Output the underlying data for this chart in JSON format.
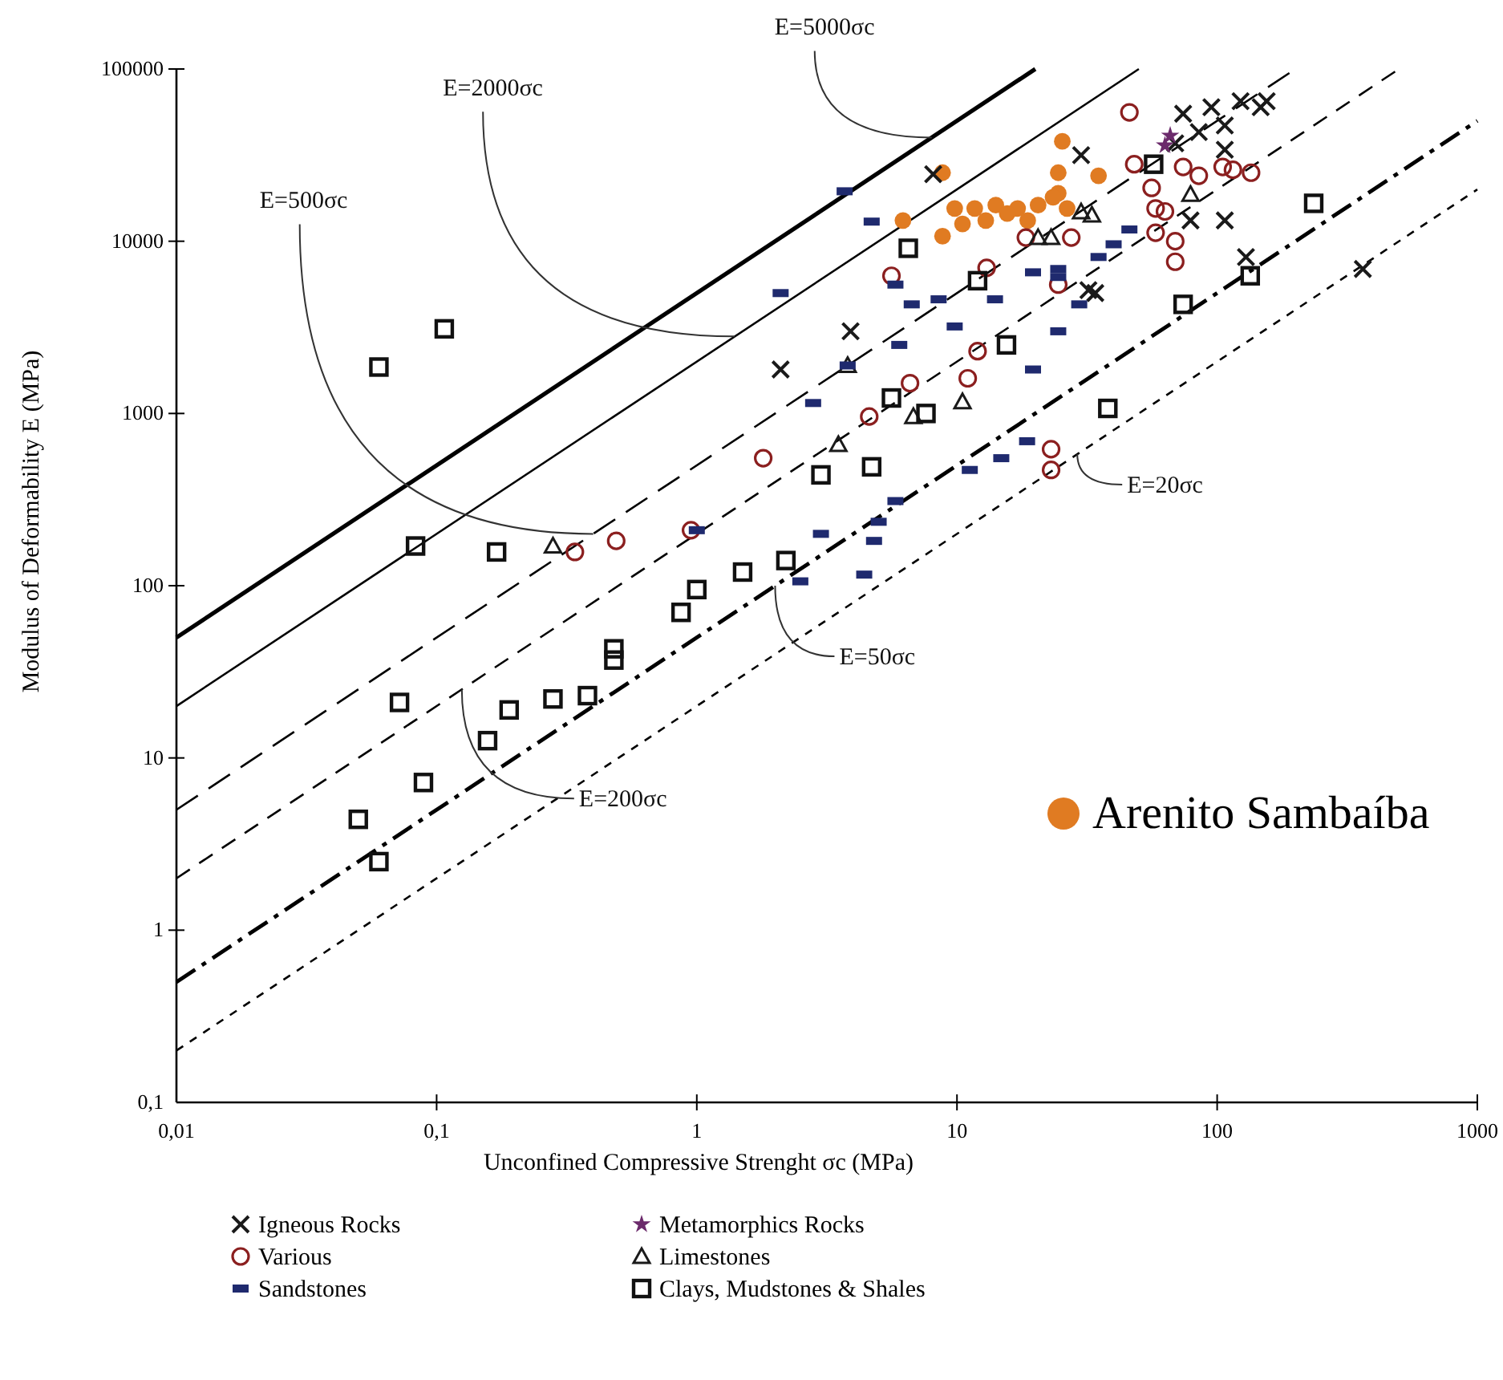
{
  "chart_data": {
    "type": "scatter",
    "xlabel": "Unconfined Compressive Strenght σc (MPa)",
    "ylabel": "Modulus of Deformability  E (MPa)",
    "log": "xy",
    "grid": false,
    "legend": "bottom",
    "xlim": [
      0.01,
      1000
    ],
    "ylim": [
      0.1,
      100000
    ],
    "xticks": [
      {
        "value": 0.01,
        "label": "0,01"
      },
      {
        "value": 0.1,
        "label": "0,1"
      },
      1,
      10,
      100,
      1000
    ],
    "yticks": [
      {
        "value": 0.1,
        "label": "0,1"
      },
      1,
      10,
      100,
      1000,
      10000,
      100000
    ],
    "annotations": [
      {
        "text": "E=5000σc",
        "x": 8,
        "y": 40000
      },
      {
        "text": "E=2000σc",
        "x": 1.4,
        "y": 2800
      },
      {
        "text": "E=500σc",
        "x": 0.4,
        "y": 200
      },
      {
        "text": "E=200σc",
        "x": 0.125,
        "y": 25
      },
      {
        "text": "E=50σc",
        "x": 2,
        "y": 100
      },
      {
        "text": "E=20σc",
        "x": 29,
        "y": 580
      }
    ],
    "series": [
      {
        "name": "Igneous Rocks",
        "type": "scatter",
        "marker": "cross",
        "color": "#1a1a1a",
        "x": [
          2.1,
          3.9,
          30,
          8.1,
          34,
          74,
          95,
          123,
          155,
          107,
          85,
          147,
          107,
          107,
          79,
          129,
          363,
          32,
          69
        ],
        "values": [
          1800,
          3000,
          31600,
          24500,
          5000,
          55000,
          60000,
          65000,
          65000,
          47000,
          43000,
          60000,
          34000,
          13200,
          13200,
          8100,
          6900,
          5200,
          37000
        ]
      },
      {
        "name": "Metamorphics Rocks",
        "type": "scatter",
        "marker": "star",
        "color": "#6b2a6b",
        "x": [
          63,
          66
        ],
        "values": [
          36000,
          41000
        ]
      },
      {
        "name": "Various",
        "type": "scatter",
        "marker": "circle",
        "color": "#8b1f1f",
        "x": [
          0.34,
          0.49,
          0.95,
          1.8,
          4.6,
          6.6,
          11,
          12,
          13,
          5.6,
          18.4,
          27.5,
          23,
          23,
          24.5,
          46,
          48,
          56,
          58,
          63,
          58,
          69,
          69,
          85,
          115,
          135,
          105,
          74
        ],
        "values": [
          157,
          182,
          210,
          550,
          960,
          1500,
          1600,
          2300,
          7000,
          6300,
          10500,
          10500,
          620,
          470,
          5600,
          56000,
          28000,
          20400,
          15500,
          14900,
          11200,
          10000,
          7600,
          24000,
          26000,
          25000,
          27000,
          27000
        ]
      },
      {
        "name": "Limestones",
        "type": "scatter",
        "marker": "triangle",
        "color": "#1a1a1a",
        "x": [
          0.28,
          3.5,
          3.8,
          6.8,
          10.5,
          20.5,
          23,
          30,
          33,
          79
        ],
        "values": [
          170,
          660,
          1900,
          960,
          1170,
          10500,
          10500,
          14800,
          14200,
          18700
        ]
      },
      {
        "name": "Sandstones",
        "type": "scatter",
        "color": "#1f2a6e",
        "x": [
          3.7,
          4.7,
          2.1,
          2.8,
          3.8,
          6,
          6.7,
          8.5,
          5.8,
          9.8,
          14,
          19.6,
          24.5,
          24.5,
          19.6,
          29.5,
          18.6,
          14.8,
          11.2,
          5.8,
          5,
          3,
          4.8,
          4.4,
          2.5,
          1,
          24.5,
          40,
          35,
          46
        ],
        "values": [
          19500,
          13000,
          5000,
          1150,
          1900,
          2500,
          4300,
          4600,
          5600,
          3200,
          4600,
          6600,
          6200,
          3000,
          1800,
          4300,
          690,
          550,
          470,
          310,
          235,
          200,
          182,
          116,
          106,
          210,
          6900,
          9600,
          8100,
          11700
        ]
      },
      {
        "name": "Clays, Mudstones & Shales",
        "type": "scatter",
        "marker": "square",
        "color": "#111111",
        "x": [
          0.06,
          0.05,
          0.089,
          0.072,
          0.157,
          0.19,
          0.28,
          0.38,
          0.48,
          0.48,
          0.083,
          0.17,
          0.06,
          0.107,
          1,
          0.87,
          1.5,
          2.2,
          3,
          4.7,
          7.6,
          5.6,
          6.5,
          12,
          15.5,
          38,
          74,
          134,
          235,
          57
        ],
        "values": [
          2.5,
          4.4,
          7.2,
          21,
          12.6,
          19,
          22,
          23,
          43,
          37,
          170,
          157,
          1860,
          3100,
          95,
          70,
          120,
          140,
          440,
          490,
          1000,
          1230,
          9100,
          5900,
          2500,
          1070,
          4300,
          6300,
          16600,
          28000
        ]
      },
      {
        "name": "Arenito Sambaíba",
        "type": "scatter",
        "marker": "circle",
        "color": "#e07b22",
        "x": [
          25.4,
          8.8,
          6.2,
          8.8,
          9.8,
          11.7,
          14.1,
          17.1,
          20.5,
          24.5,
          24.5,
          35,
          10.5,
          12.9,
          18.7,
          23.4,
          15.6,
          26.5
        ],
        "values": [
          38000,
          25000,
          13200,
          10700,
          15500,
          15500,
          16200,
          15500,
          16200,
          19000,
          25000,
          24000,
          12600,
          13200,
          13200,
          18000,
          14500,
          15500
        ]
      },
      {
        "type": "line",
        "line_style": "solid",
        "color": "#000000",
        "x": [
          0.01,
          20
        ],
        "values": [
          50,
          100000
        ]
      },
      {
        "type": "line",
        "line_style": "solid",
        "color": "#000000",
        "x": [
          0.01,
          50
        ],
        "values": [
          20,
          100000
        ]
      },
      {
        "type": "line",
        "line_style": "dashed",
        "color": "#000000",
        "x": [
          0.01,
          200
        ],
        "values": [
          5,
          100000
        ]
      },
      {
        "type": "line",
        "line_style": "dashed",
        "color": "#000000",
        "x": [
          0.01,
          500
        ],
        "values": [
          2,
          100000
        ]
      },
      {
        "type": "line",
        "line_style": "dashed",
        "color": "#000000",
        "x": [
          0.01,
          1000
        ],
        "values": [
          0.5,
          50000
        ]
      },
      {
        "type": "line",
        "line_style": "dashed",
        "color": "#000000",
        "x": [
          0.01,
          1000
        ],
        "values": [
          0.2,
          20000
        ]
      }
    ]
  }
}
